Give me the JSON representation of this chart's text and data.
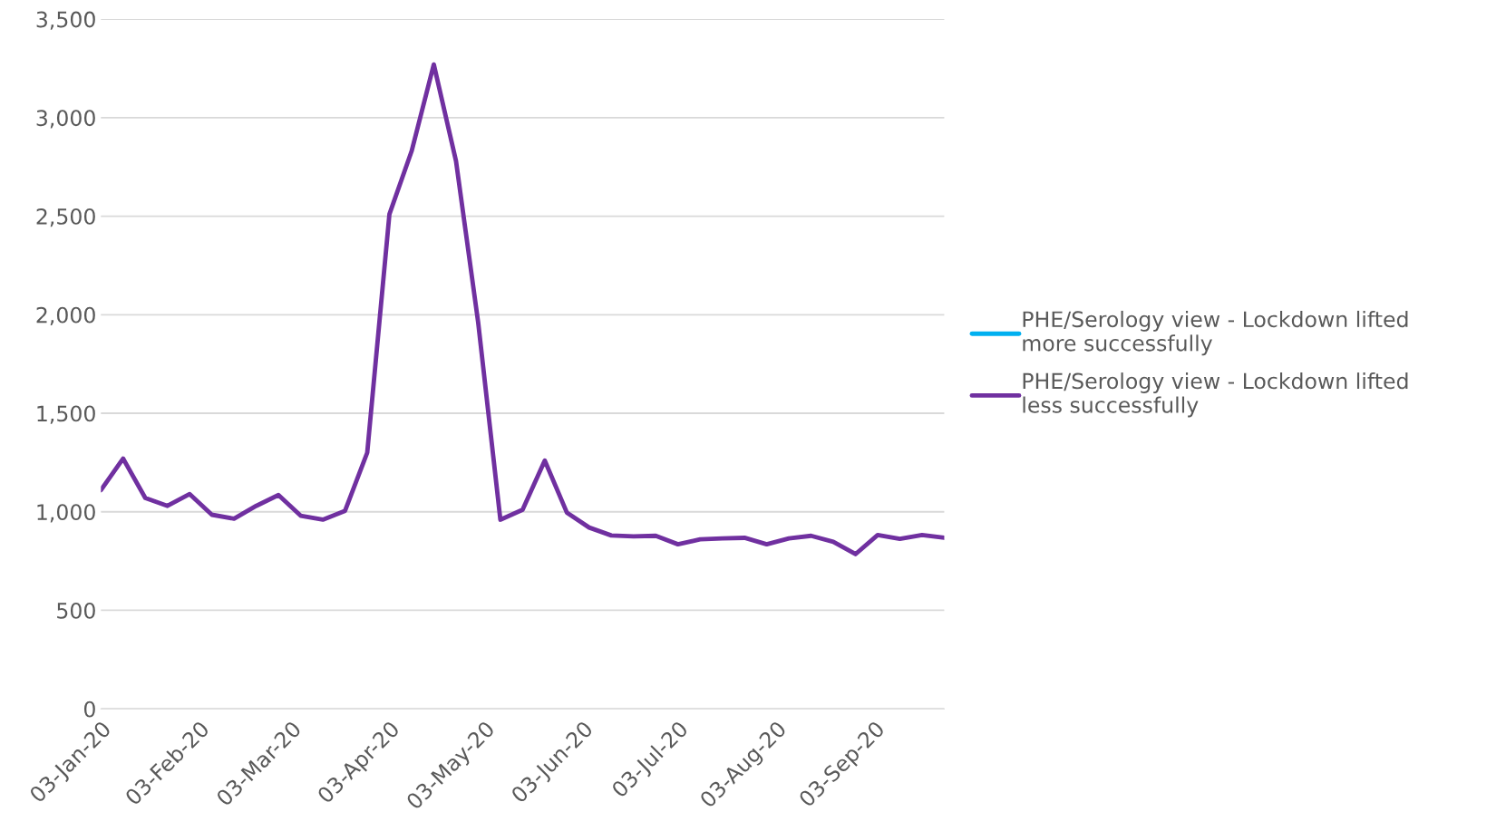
{
  "chart_data": {
    "type": "line",
    "x": [
      "2020-01-03",
      "2020-01-10",
      "2020-01-17",
      "2020-01-24",
      "2020-01-31",
      "2020-02-07",
      "2020-02-14",
      "2020-02-21",
      "2020-02-28",
      "2020-03-06",
      "2020-03-13",
      "2020-03-20",
      "2020-03-27",
      "2020-04-03",
      "2020-04-10",
      "2020-04-17",
      "2020-04-24",
      "2020-05-01",
      "2020-05-08",
      "2020-05-15",
      "2020-05-22",
      "2020-05-29",
      "2020-06-05",
      "2020-06-12",
      "2020-06-19",
      "2020-06-26",
      "2020-07-03",
      "2020-07-10",
      "2020-07-17",
      "2020-07-24",
      "2020-07-31",
      "2020-08-07",
      "2020-08-14",
      "2020-08-21",
      "2020-08-28",
      "2020-09-04",
      "2020-09-11",
      "2020-09-18",
      "2020-09-25"
    ],
    "series": [
      {
        "name": "PHE/Serology view - Lockdown lifted more successfully",
        "color": "#00b0f0",
        "values": [
          null,
          null,
          null,
          null,
          null,
          null,
          null,
          null,
          null,
          null,
          null,
          null,
          null,
          null,
          null,
          null,
          null,
          null,
          null,
          null,
          null,
          null,
          null,
          null,
          null,
          null,
          null,
          null,
          null,
          null,
          null,
          null,
          null,
          null,
          null,
          null,
          null,
          null,
          null
        ]
      },
      {
        "name": "PHE/Serology view - Lockdown lifted less successfully",
        "color": "#7030a0",
        "values": [
          1110,
          1270,
          1070,
          1030,
          1090,
          985,
          965,
          1030,
          1085,
          980,
          960,
          1005,
          1300,
          2510,
          2830,
          3270,
          2780,
          1960,
          960,
          1010,
          1260,
          995,
          920,
          880,
          875,
          878,
          835,
          860,
          865,
          868,
          835,
          865,
          878,
          848,
          785,
          882,
          863,
          882,
          868
        ]
      }
    ],
    "xlim": [
      "2020-01-03",
      "2020-09-25"
    ],
    "xticks": [
      {
        "value": "2020-01-03",
        "label": "03-Jan-20"
      },
      {
        "value": "2020-02-03",
        "label": "03-Feb-20"
      },
      {
        "value": "2020-03-03",
        "label": "03-Mar-20"
      },
      {
        "value": "2020-04-03",
        "label": "03-Apr-20"
      },
      {
        "value": "2020-05-03",
        "label": "03-May-20"
      },
      {
        "value": "2020-06-03",
        "label": "03-Jun-20"
      },
      {
        "value": "2020-07-03",
        "label": "03-Jul-20"
      },
      {
        "value": "2020-08-03",
        "label": "03-Aug-20"
      },
      {
        "value": "2020-09-03",
        "label": "03-Sep-20"
      }
    ],
    "ylim": [
      0,
      3500
    ],
    "yticks": [
      0,
      500,
      {
        "value": 1000,
        "label": "1,000"
      },
      {
        "value": 1500,
        "label": "1,500"
      },
      {
        "value": 2000,
        "label": "2,000"
      },
      {
        "value": 2500,
        "label": "2,500"
      },
      {
        "value": 3000,
        "label": "3,000"
      },
      {
        "value": 3500,
        "label": "3,500"
      }
    ],
    "grid": "y",
    "legend": "right",
    "line_style": "solid"
  }
}
